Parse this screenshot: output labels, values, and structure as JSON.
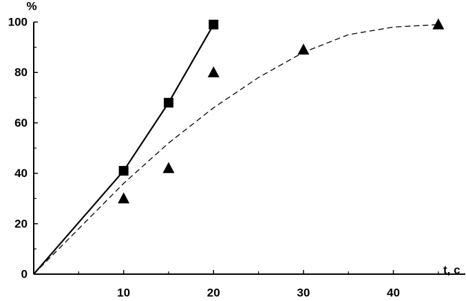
{
  "chart_data": {
    "type": "line",
    "y_label": "%",
    "x_label": "t, c",
    "xlim": [
      0,
      48
    ],
    "ylim": [
      0,
      100
    ],
    "xticks": [
      10,
      20,
      30,
      40
    ],
    "yticks": [
      0,
      20,
      40,
      60,
      80,
      100
    ],
    "x_minor_ticks": [
      5,
      15,
      25,
      35,
      45
    ],
    "y_minor_ticks": [
      10,
      30,
      50,
      70,
      90
    ],
    "series": [
      {
        "style": "solid",
        "color": "#000000",
        "x": [
          0,
          10,
          15,
          20
        ],
        "values": [
          0,
          41,
          68,
          99
        ]
      },
      {
        "style": "dashed",
        "color": "#000000",
        "x": [
          0,
          10,
          15,
          20,
          25,
          30,
          35,
          40,
          45
        ],
        "values": [
          0,
          36,
          52,
          66,
          78,
          88,
          95,
          98,
          99
        ]
      },
      {
        "marker": "square",
        "color": "#000000",
        "x": [
          10,
          15,
          20
        ],
        "values": [
          41,
          68,
          99
        ]
      },
      {
        "marker": "triangle",
        "color": "#000000",
        "x": [
          10,
          15,
          20,
          30,
          45
        ],
        "values": [
          30,
          42,
          80,
          89,
          99
        ]
      }
    ]
  }
}
